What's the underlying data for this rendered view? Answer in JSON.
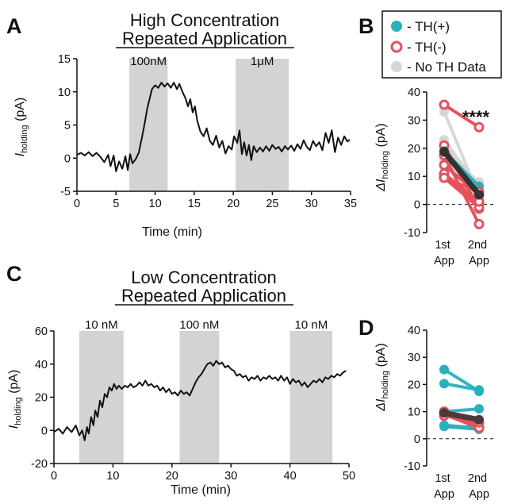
{
  "panel_labels": [
    "A",
    "B",
    "C",
    "D"
  ],
  "legend": {
    "items": [
      {
        "label": "- TH(+)",
        "color": "#27b1bd",
        "style": "filled"
      },
      {
        "label": "- TH(-)",
        "color": "#e4525e",
        "style": "hollow"
      },
      {
        "label": "- No TH Data",
        "color": "#d6d6d6",
        "style": "filled"
      }
    ]
  },
  "colors": {
    "th_pos": "#27b1bd",
    "th_neg": "#e4525e",
    "no_th": "#d6d6d6",
    "mean": "#333333",
    "mean_d": "#4a3a3a",
    "shade": "#d3d3d3"
  },
  "chart_data": [
    {
      "id": "A",
      "type": "line",
      "title": "High Concentration",
      "subtitle": "Repeated Application",
      "xlabel": "Time (min)",
      "ylabel_main": "I",
      "ylabel_sub": "holding",
      "ylabel_unit": " (pA)",
      "xlim": [
        0,
        35
      ],
      "ylim": [
        -5,
        15
      ],
      "xticks": [
        "0",
        "5",
        "10",
        "15",
        "20",
        "25",
        "30",
        "35"
      ],
      "yticks": [
        "-5",
        "0",
        "5",
        "10",
        "15"
      ],
      "applications": [
        {
          "label": "100nM",
          "start": 6.7,
          "end": 11.6
        },
        {
          "label": "1μM",
          "start": 20.3,
          "end": 27.1
        }
      ],
      "trace": [
        [
          0,
          0.5
        ],
        [
          0.5,
          0.8
        ],
        [
          1,
          0.4
        ],
        [
          1.5,
          0.9
        ],
        [
          2,
          0.3
        ],
        [
          2.5,
          0.8
        ],
        [
          3,
          0.2
        ],
        [
          3.5,
          -0.6
        ],
        [
          4,
          0.5
        ],
        [
          4.3,
          -1.2
        ],
        [
          4.7,
          0.4
        ],
        [
          5,
          -2.0
        ],
        [
          5.4,
          -0.5
        ],
        [
          5.8,
          -1.6
        ],
        [
          6.2,
          0.3
        ],
        [
          6.5,
          -1.8
        ],
        [
          6.8,
          0.6
        ],
        [
          7.1,
          -0.8
        ],
        [
          7.5,
          -0.2
        ],
        [
          7.9,
          0.8
        ],
        [
          8.3,
          3.0
        ],
        [
          8.7,
          5.5
        ],
        [
          9.0,
          7.5
        ],
        [
          9.3,
          9.0
        ],
        [
          9.6,
          10.4
        ],
        [
          10.0,
          11.0
        ],
        [
          10.4,
          10.6
        ],
        [
          10.8,
          11.4
        ],
        [
          11.2,
          10.8
        ],
        [
          11.6,
          11.3
        ],
        [
          12.0,
          10.6
        ],
        [
          12.4,
          11.4
        ],
        [
          12.8,
          10.4
        ],
        [
          13.1,
          11.2
        ],
        [
          13.5,
          10.0
        ],
        [
          13.9,
          9.0
        ],
        [
          14.2,
          7.8
        ],
        [
          14.5,
          8.9
        ],
        [
          14.8,
          6.9
        ],
        [
          15.1,
          7.8
        ],
        [
          15.4,
          5.6
        ],
        [
          15.8,
          4.0
        ],
        [
          16.2,
          3.3
        ],
        [
          16.6,
          4.5
        ],
        [
          17.0,
          2.6
        ],
        [
          17.4,
          2.0
        ],
        [
          17.8,
          3.4
        ],
        [
          18.2,
          1.6
        ],
        [
          18.6,
          2.6
        ],
        [
          19.0,
          0.7
        ],
        [
          19.4,
          1.8
        ],
        [
          19.8,
          1.3
        ],
        [
          20.1,
          3.3
        ],
        [
          20.5,
          2.3
        ],
        [
          20.8,
          4.2
        ],
        [
          21.1,
          0.6
        ],
        [
          21.4,
          2.4
        ],
        [
          21.7,
          0.4
        ],
        [
          22.0,
          2.0
        ],
        [
          22.3,
          -0.3
        ],
        [
          22.6,
          1.8
        ],
        [
          23.0,
          0.9
        ],
        [
          23.4,
          1.6
        ],
        [
          23.8,
          1.0
        ],
        [
          24.2,
          1.8
        ],
        [
          24.6,
          1.1
        ],
        [
          25.0,
          2.0
        ],
        [
          25.4,
          1.4
        ],
        [
          25.8,
          1.7
        ],
        [
          26.2,
          1.0
        ],
        [
          26.6,
          1.8
        ],
        [
          27.0,
          1.3
        ],
        [
          27.4,
          1.9
        ],
        [
          27.8,
          1.1
        ],
        [
          28.2,
          2.1
        ],
        [
          28.6,
          1.4
        ],
        [
          29.0,
          2.7
        ],
        [
          29.4,
          1.7
        ],
        [
          29.8,
          1.2
        ],
        [
          30.2,
          2.6
        ],
        [
          30.6,
          1.8
        ],
        [
          31.0,
          2.4
        ],
        [
          31.4,
          1.2
        ],
        [
          31.8,
          3.8
        ],
        [
          32.2,
          2.3
        ],
        [
          32.6,
          4.2
        ],
        [
          33.0,
          0.9
        ],
        [
          33.4,
          3.1
        ],
        [
          33.8,
          2.0
        ],
        [
          34.2,
          3.3
        ],
        [
          34.6,
          2.5
        ],
        [
          34.9,
          2.8
        ]
      ]
    },
    {
      "id": "B",
      "type": "line",
      "xlim": [
        0.5,
        2.5
      ],
      "ylim": [
        -10,
        40
      ],
      "categories": [
        "1st App",
        "2nd App"
      ],
      "yticks": [
        "-10",
        "0",
        "10",
        "20",
        "30",
        "40"
      ],
      "ylabel_main": "ΔI",
      "ylabel_sub": "holding",
      "ylabel_unit": " (pA)",
      "annotation": "****",
      "no_th_pairs": [
        [
          23,
          6
        ],
        [
          22,
          5
        ],
        [
          21,
          4
        ],
        [
          20,
          3
        ],
        [
          19,
          7
        ],
        [
          18,
          5
        ],
        [
          17,
          2
        ],
        [
          22,
          1
        ],
        [
          20,
          -1
        ],
        [
          16,
          6
        ],
        [
          18,
          8
        ],
        [
          21,
          0
        ],
        [
          33,
          3
        ],
        [
          19,
          1
        ],
        [
          15,
          4
        ]
      ],
      "th_neg_pairs": [
        [
          35.5,
          27.5
        ],
        [
          21,
          -1.5
        ],
        [
          17.5,
          -7
        ],
        [
          10,
          0.5
        ],
        [
          9.5,
          -1
        ],
        [
          11,
          1
        ],
        [
          14,
          3.5
        ],
        [
          9.5,
          4.5
        ]
      ],
      "th_pos_pairs": [
        [
          19,
          6.5
        ],
        [
          17.5,
          4.5
        ]
      ],
      "mean": [
        18.8,
        3.5
      ],
      "mean_err": [
        1.8,
        1.5
      ]
    },
    {
      "id": "C",
      "type": "line",
      "title": "Low Concentration",
      "subtitle": "Repeated Application",
      "xlabel": "Time (min)",
      "ylabel_main": "I",
      "ylabel_sub": "holding",
      "ylabel_unit": " (pA)",
      "xlim": [
        0,
        50
      ],
      "ylim": [
        -20,
        60
      ],
      "xticks": [
        "0",
        "10",
        "20",
        "30",
        "40",
        "50"
      ],
      "yticks": [
        "-20",
        "0",
        "20",
        "40",
        "60"
      ],
      "applications": [
        {
          "label": "10 nM",
          "start": 4.3,
          "end": 11.8
        },
        {
          "label": "100 nM",
          "start": 21.3,
          "end": 28.0
        },
        {
          "label": "10 nM",
          "start": 40.0,
          "end": 47.2
        }
      ],
      "trace": [
        [
          0,
          -1
        ],
        [
          0.8,
          1
        ],
        [
          1.5,
          -2
        ],
        [
          2.2,
          2
        ],
        [
          3,
          -1
        ],
        [
          3.7,
          3
        ],
        [
          4.3,
          -3
        ],
        [
          4.8,
          0
        ],
        [
          5.2,
          -6
        ],
        [
          5.6,
          2
        ],
        [
          5.9,
          -2
        ],
        [
          6.3,
          8
        ],
        [
          6.7,
          3
        ],
        [
          7.0,
          12
        ],
        [
          7.4,
          8
        ],
        [
          7.8,
          18
        ],
        [
          8.2,
          14
        ],
        [
          8.6,
          22
        ],
        [
          9.0,
          20
        ],
        [
          9.4,
          26
        ],
        [
          9.8,
          24
        ],
        [
          10.2,
          28
        ],
        [
          10.6,
          25
        ],
        [
          11.0,
          27
        ],
        [
          11.5,
          25
        ],
        [
          12,
          27
        ],
        [
          12.5,
          26
        ],
        [
          13,
          28
        ],
        [
          13.5,
          26
        ],
        [
          14,
          27
        ],
        [
          14.5,
          29
        ],
        [
          15,
          27
        ],
        [
          15.5,
          30
        ],
        [
          16,
          27
        ],
        [
          16.5,
          28
        ],
        [
          17,
          26
        ],
        [
          17.5,
          27
        ],
        [
          18,
          24
        ],
        [
          18.5,
          26
        ],
        [
          19,
          23
        ],
        [
          19.5,
          25
        ],
        [
          20,
          22
        ],
        [
          20.5,
          23
        ],
        [
          21,
          21
        ],
        [
          21.5,
          24
        ],
        [
          22,
          22
        ],
        [
          22.5,
          23
        ],
        [
          23,
          21
        ],
        [
          23.5,
          25
        ],
        [
          24,
          29
        ],
        [
          24.5,
          32
        ],
        [
          25,
          34
        ],
        [
          25.5,
          37
        ],
        [
          26,
          40
        ],
        [
          26.5,
          41
        ],
        [
          27,
          39
        ],
        [
          27.5,
          42
        ],
        [
          28,
          40
        ],
        [
          28.5,
          41
        ],
        [
          29,
          38
        ],
        [
          29.5,
          39
        ],
        [
          30,
          37
        ],
        [
          30.5,
          36
        ],
        [
          31,
          33
        ],
        [
          31.5,
          34
        ],
        [
          32,
          32
        ],
        [
          32.5,
          33
        ],
        [
          33,
          30
        ],
        [
          33.5,
          32
        ],
        [
          34,
          31
        ],
        [
          34.5,
          33
        ],
        [
          35,
          30
        ],
        [
          35.5,
          32
        ],
        [
          36,
          31
        ],
        [
          36.5,
          33
        ],
        [
          37,
          31
        ],
        [
          37.5,
          32
        ],
        [
          38,
          30
        ],
        [
          38.5,
          33
        ],
        [
          39,
          30
        ],
        [
          39.5,
          32
        ],
        [
          40,
          28
        ],
        [
          40.5,
          31
        ],
        [
          41,
          29
        ],
        [
          41.5,
          30
        ],
        [
          42,
          27
        ],
        [
          42.5,
          29
        ],
        [
          43,
          26
        ],
        [
          43.5,
          28
        ],
        [
          44,
          30
        ],
        [
          44.5,
          29
        ],
        [
          45,
          31
        ],
        [
          45.5,
          29
        ],
        [
          46,
          32
        ],
        [
          46.5,
          31
        ],
        [
          47,
          33
        ],
        [
          47.5,
          32
        ],
        [
          48,
          34
        ],
        [
          48.5,
          33
        ],
        [
          49,
          35
        ],
        [
          49.5,
          36
        ]
      ]
    },
    {
      "id": "D",
      "type": "line",
      "xlim": [
        0.5,
        2.5
      ],
      "ylim": [
        -10,
        40
      ],
      "categories": [
        "1st App",
        "2nd App"
      ],
      "yticks": [
        "-10",
        "0",
        "10",
        "20",
        "30",
        "40"
      ],
      "ylabel_main": "ΔI",
      "ylabel_sub": "holding",
      "ylabel_unit": " (pA)",
      "th_pos_pairs": [
        [
          25.5,
          17.5
        ],
        [
          20.3,
          18
        ],
        [
          10,
          11
        ],
        [
          9.5,
          7
        ],
        [
          9,
          5
        ],
        [
          5,
          4
        ],
        [
          4.5,
          3.5
        ]
      ],
      "th_neg_pairs": [
        [
          10,
          4.5
        ],
        [
          9,
          4
        ],
        [
          8.5,
          6
        ]
      ],
      "mean": [
        9.5,
        7.0
      ],
      "mean_err": [
        1.2,
        1.2
      ]
    }
  ]
}
